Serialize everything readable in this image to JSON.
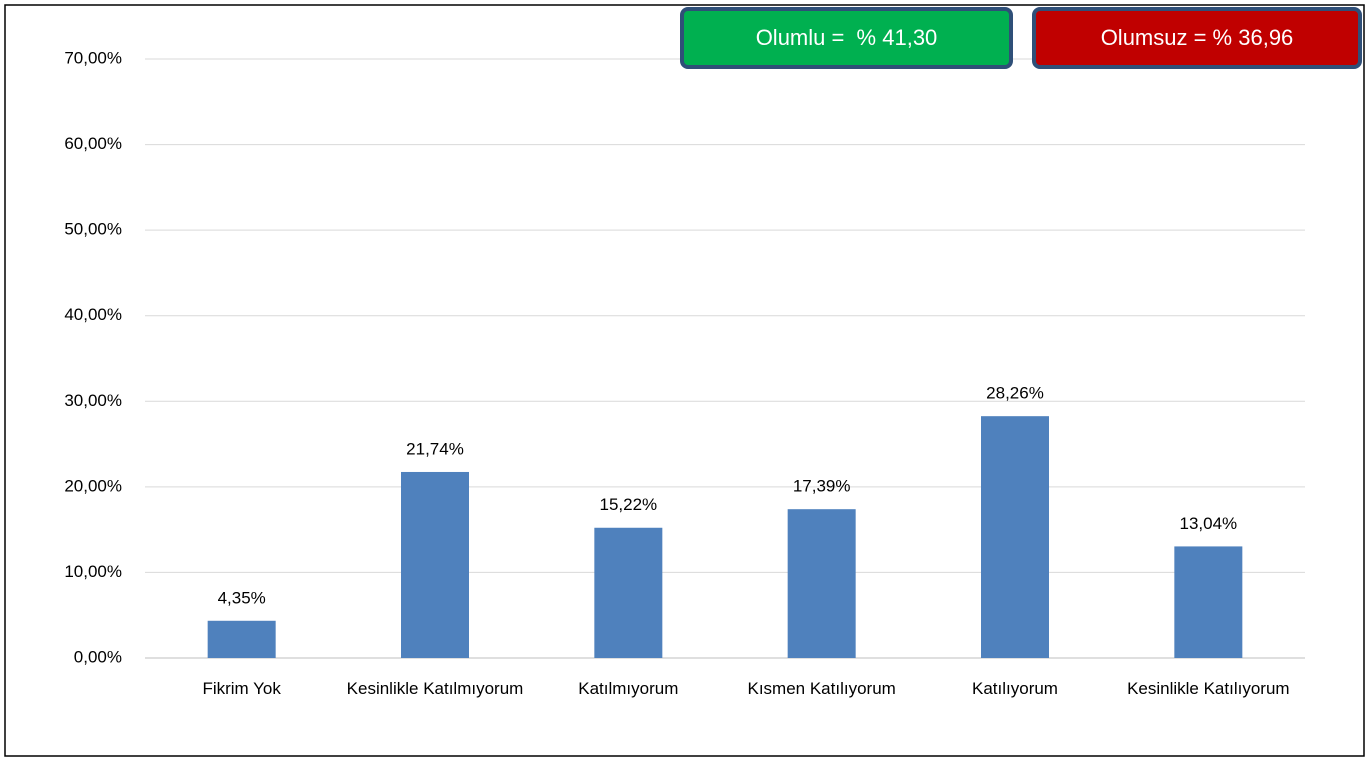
{
  "chart_data": {
    "type": "bar",
    "categories": [
      "Fikrim Yok",
      "Kesinlikle Katılmıyorum",
      "Katılmıyorum",
      "Kısmen Katılıyorum",
      "Katılıyorum",
      "Kesinlikle Katılıyorum"
    ],
    "values": [
      4.35,
      21.74,
      15.22,
      17.39,
      28.26,
      13.04
    ],
    "value_labels": [
      "4,35%",
      "21,74%",
      "15,22%",
      "17,39%",
      "28,26%",
      "13,04%"
    ],
    "color": "#4f81bd",
    "ylim": [
      0,
      70
    ],
    "yticks": [
      {
        "value": 0,
        "label": "0,00%"
      },
      {
        "value": 10,
        "label": "10,00%"
      },
      {
        "value": 20,
        "label": "20,00%"
      },
      {
        "value": 30,
        "label": "30,00%"
      },
      {
        "value": 40,
        "label": "40,00%"
      },
      {
        "value": 50,
        "label": "50,00%"
      },
      {
        "value": 60,
        "label": "60,00%"
      },
      {
        "value": 70,
        "label": "70,00%"
      }
    ],
    "grid": true,
    "annotations": [
      {
        "text": "Olumlu =  % 41,30",
        "color": "#00b050"
      },
      {
        "text": "Olumsuz = % 36,96",
        "color": "#c00000"
      }
    ]
  }
}
